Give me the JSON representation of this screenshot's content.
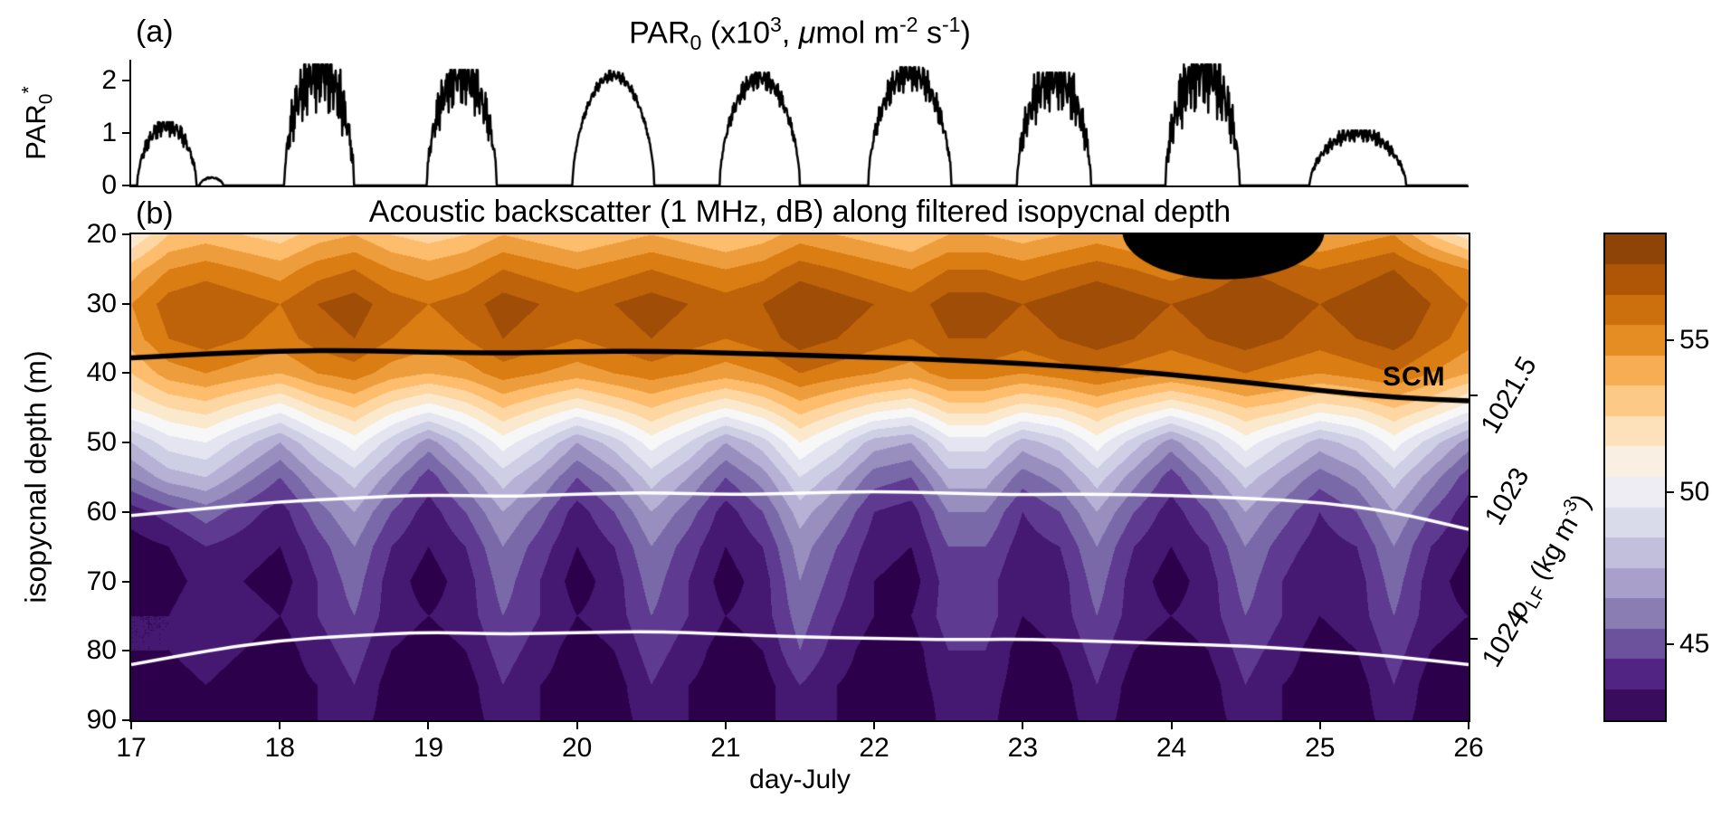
{
  "chart_data": [
    {
      "panel_label": "(a)",
      "type": "line",
      "title_parts": [
        {
          "t": "PAR"
        },
        {
          "t": "0",
          "v": "sub"
        },
        {
          "t": " (x10"
        },
        {
          "t": "3",
          "v": "sup"
        },
        {
          "t": ", "
        },
        {
          "t": "μ",
          "i": true
        },
        {
          "t": "mol m"
        },
        {
          "t": "-2",
          "v": "sup"
        },
        {
          "t": " s"
        },
        {
          "t": "-1",
          "v": "sup"
        },
        {
          "t": ")"
        }
      ],
      "ylabel_parts": [
        {
          "t": "PAR"
        },
        {
          "t": "0",
          "v": "sub"
        },
        {
          "t": "*",
          "v": "sup"
        }
      ],
      "x_range": [
        17,
        26
      ],
      "ylim": [
        0,
        2.4
      ],
      "yticks": [
        0,
        1,
        2
      ],
      "line_color": "#000000",
      "daily_pulses": [
        {
          "start": 17.04,
          "end": 17.44,
          "peak": 1.15,
          "spikiness": 0.5
        },
        {
          "start": 17.46,
          "end": 17.62,
          "peak": 0.15,
          "spikiness": 0.3
        },
        {
          "start": 18.03,
          "end": 18.5,
          "peak": 2.2,
          "spikiness": 1.0
        },
        {
          "start": 18.99,
          "end": 19.46,
          "peak": 2.1,
          "spikiness": 0.8
        },
        {
          "start": 19.97,
          "end": 20.52,
          "peak": 2.1,
          "spikiness": 0.15
        },
        {
          "start": 20.96,
          "end": 21.5,
          "peak": 2.05,
          "spikiness": 0.3
        },
        {
          "start": 21.96,
          "end": 22.52,
          "peak": 2.15,
          "spikiness": 0.45
        },
        {
          "start": 22.96,
          "end": 23.46,
          "peak": 2.05,
          "spikiness": 0.85
        },
        {
          "start": 23.96,
          "end": 24.46,
          "peak": 2.2,
          "spikiness": 1.0
        },
        {
          "start": 24.93,
          "end": 25.58,
          "peak": 1.0,
          "spikiness": 0.45
        }
      ]
    },
    {
      "panel_label": "(b)",
      "type": "heatmap",
      "title": "Acoustic backscatter (1 MHz, dB) along filtered isopycnal depth",
      "xlabel": "day-July",
      "ylabel": "isopycnal depth (m)",
      "xticks": [
        17,
        18,
        19,
        20,
        21,
        22,
        23,
        24,
        25,
        26
      ],
      "yticks": [
        20,
        30,
        40,
        50,
        60,
        70,
        80,
        90
      ],
      "x_range": [
        17,
        26
      ],
      "depth_range": [
        20,
        90
      ],
      "value_range": [
        42.5,
        58.5
      ],
      "contour_step_db": 1,
      "colormap_stops": [
        [
          0.0,
          "#2d004b"
        ],
        [
          0.1,
          "#542788"
        ],
        [
          0.2,
          "#8073ac"
        ],
        [
          0.3,
          "#b2abd2"
        ],
        [
          0.4,
          "#d8daeb"
        ],
        [
          0.5,
          "#f7f7f7"
        ],
        [
          0.6,
          "#fee0b6"
        ],
        [
          0.7,
          "#fdb863"
        ],
        [
          0.8,
          "#e08214"
        ],
        [
          0.9,
          "#b35806"
        ],
        [
          1.0,
          "#7f3b08"
        ]
      ],
      "grid": {
        "x_start": 17,
        "x_step": 0.25,
        "depths": [
          20,
          25,
          30,
          35,
          40,
          45,
          50,
          55,
          60,
          65,
          70,
          75,
          80,
          85,
          90
        ],
        "values_db": [
          [
            51,
            53,
            53.5,
            53,
            52.5,
            53.5,
            54,
            53,
            52.5,
            53,
            54,
            53.5,
            53,
            53.5,
            54,
            53.5,
            53,
            53.5,
            54.5,
            54,
            53.5,
            53,
            54,
            54,
            53.5,
            54,
            54.5,
            54,
            53.5,
            54,
            55,
            54.5,
            54,
            54.5,
            55,
            53,
            51.5
          ],
          [
            53.5,
            55,
            55.5,
            55,
            54.5,
            55.5,
            56,
            55,
            54.5,
            55,
            56,
            55.5,
            55,
            55.5,
            56,
            55.5,
            55,
            55.5,
            56.5,
            56,
            55.5,
            55,
            56,
            56,
            55.5,
            56,
            56.5,
            56,
            55.5,
            56,
            57,
            56.5,
            56,
            56.5,
            57,
            56,
            55
          ],
          [
            55,
            56.5,
            57,
            56.5,
            56,
            57,
            57.5,
            56.5,
            56,
            56.5,
            57.5,
            57,
            56.5,
            57,
            57.5,
            57,
            56.5,
            57,
            58,
            57.5,
            57,
            56.5,
            57.5,
            57.5,
            57,
            57.5,
            58,
            57.5,
            57,
            57.5,
            58,
            57.5,
            57,
            57.5,
            58,
            57,
            56
          ],
          [
            54.5,
            56,
            56.5,
            56,
            55.5,
            56.5,
            57,
            56,
            55.5,
            56,
            57,
            56.5,
            56,
            56.5,
            57,
            56.5,
            56,
            56.5,
            57.5,
            57,
            56.5,
            56,
            57,
            57,
            56.5,
            57,
            57.5,
            57,
            56.5,
            57,
            57.5,
            57,
            56.5,
            57,
            57.5,
            56.5,
            55.5
          ],
          [
            53,
            54.5,
            55,
            54.5,
            54,
            55,
            55.5,
            54.5,
            54,
            54.5,
            55.5,
            55,
            54.5,
            55,
            55.5,
            55,
            54.5,
            55,
            56,
            55.5,
            55,
            54.5,
            55.5,
            55.5,
            55,
            55.5,
            56,
            55.5,
            55,
            55.5,
            56,
            55.5,
            55,
            55.5,
            56,
            55,
            54
          ],
          [
            51,
            52,
            52.5,
            51.5,
            50.5,
            52,
            53,
            51.5,
            50.5,
            51.5,
            53,
            52,
            51,
            52,
            53,
            52,
            51,
            52,
            53.5,
            52.5,
            51.5,
            51,
            52.5,
            52.5,
            51.5,
            52,
            53,
            52,
            51,
            52,
            53,
            52.5,
            51.5,
            52,
            53,
            52,
            50.5
          ],
          [
            48,
            49.5,
            50,
            48.5,
            47,
            49,
            50.5,
            48.5,
            46.5,
            48.5,
            50.5,
            49,
            47,
            48.5,
            50.5,
            49,
            47,
            48.5,
            51,
            49.5,
            47.5,
            47,
            49.5,
            49.5,
            47.5,
            48.5,
            50.5,
            48.5,
            46.5,
            48.5,
            50.5,
            49,
            47.5,
            48.5,
            50.5,
            48.5,
            46.5
          ],
          [
            46,
            47.5,
            48,
            46.5,
            45,
            47,
            48.5,
            46.5,
            44.5,
            46.5,
            48.5,
            47,
            45,
            46.5,
            48.5,
            47,
            45,
            46.5,
            49,
            47.5,
            45.5,
            45,
            47.5,
            47.5,
            45.5,
            46.5,
            48.5,
            46.5,
            44.5,
            46.5,
            48.5,
            47,
            45.5,
            46.5,
            48.5,
            46.5,
            44.5
          ],
          [
            43.5,
            44.5,
            45.5,
            44.5,
            43.5,
            45.5,
            47,
            45,
            43.5,
            45,
            47,
            45.5,
            43.5,
            45,
            47,
            45.5,
            43.5,
            45,
            47.5,
            46,
            44,
            43.5,
            46,
            46,
            44,
            45,
            47,
            45,
            43.5,
            45,
            47,
            45.5,
            44,
            45,
            47,
            45,
            43.5
          ],
          [
            42.5,
            43,
            44,
            43.5,
            43,
            44.5,
            46,
            44,
            43,
            44,
            46,
            44.5,
            43,
            44,
            46,
            44.5,
            43,
            44,
            46.5,
            45,
            43.5,
            43,
            45,
            45,
            43.5,
            44,
            46,
            44,
            43,
            44,
            46,
            44.5,
            43.5,
            44,
            46,
            44,
            43
          ],
          [
            42.5,
            42.5,
            43.5,
            43,
            42.5,
            44,
            45.5,
            43.5,
            42.5,
            43.5,
            45.5,
            44,
            42.5,
            43.5,
            45.5,
            44,
            42.5,
            43.5,
            46,
            44.5,
            43,
            42.5,
            44.5,
            44.5,
            43,
            43.5,
            45.5,
            43.5,
            42.5,
            43.5,
            45.5,
            44,
            43,
            43.5,
            45.5,
            43.5,
            42.5
          ],
          [
            43,
            43,
            44,
            43.5,
            43,
            44,
            45,
            43.5,
            43,
            43.5,
            45,
            44,
            43,
            43.5,
            45,
            44,
            43,
            43.5,
            45.5,
            44,
            43,
            43,
            44.5,
            44.5,
            43,
            43.5,
            45,
            43.5,
            43,
            43.5,
            45,
            44,
            43,
            43.5,
            45,
            43.5,
            43
          ],
          [
            43,
            43,
            43.5,
            43,
            42.5,
            43.5,
            44.5,
            43,
            42.5,
            43,
            44.5,
            43.5,
            42.5,
            43,
            44.5,
            43.5,
            42.5,
            43,
            45,
            43.5,
            42.5,
            42.5,
            44,
            44,
            42.5,
            43,
            44.5,
            43,
            42.5,
            43,
            44.5,
            43.5,
            42.5,
            43,
            44.5,
            43,
            42.5
          ],
          [
            42.5,
            42.5,
            43,
            42.5,
            42.5,
            43,
            44,
            42.5,
            42.5,
            42.5,
            44,
            43,
            42.5,
            42.5,
            44,
            43,
            42.5,
            42.5,
            44,
            43,
            42.5,
            42.5,
            43.5,
            43.5,
            42.5,
            42.5,
            44,
            42.5,
            42.5,
            42.5,
            44,
            43,
            42.5,
            42.5,
            44,
            42.5,
            42.5
          ],
          [
            42.5,
            42.5,
            43,
            42.5,
            42,
            43,
            43.5,
            42.5,
            42,
            42.5,
            43.5,
            43,
            42,
            42.5,
            43.5,
            43,
            42,
            42.5,
            44,
            43,
            42,
            42,
            43.5,
            43.5,
            42,
            42.5,
            43.5,
            42.5,
            42,
            42.5,
            43.5,
            43,
            42,
            42.5,
            43.5,
            42.5,
            42
          ]
        ]
      },
      "scm_label": "SCM",
      "scm_line": {
        "color": "#000000",
        "x_start": 17,
        "x_step": 0.5,
        "depths": [
          37.8,
          37.2,
          36.8,
          36.7,
          37.0,
          37.1,
          36.9,
          36.8,
          37.1,
          37.4,
          37.7,
          38.1,
          38.6,
          39.3,
          40.2,
          41.3,
          42.5,
          43.5,
          44.0
        ]
      },
      "white_contours": [
        {
          "label": "1023",
          "x_start": 17,
          "x_step": 0.5,
          "depths": [
            60.5,
            59.5,
            58.5,
            58.0,
            57.5,
            57.8,
            57.4,
            57.2,
            57.5,
            57.3,
            57.0,
            57.3,
            57.5,
            57.4,
            57.6,
            58.0,
            58.6,
            60.0,
            62.5
          ]
        },
        {
          "label": "1024",
          "x_start": 17,
          "x_step": 0.5,
          "depths": [
            82.0,
            80.0,
            78.5,
            77.8,
            77.3,
            77.6,
            77.4,
            77.2,
            77.6,
            78.0,
            78.2,
            78.4,
            78.3,
            78.6,
            79.0,
            79.3,
            80.0,
            80.8,
            82.0
          ]
        }
      ],
      "right_axis_labels": [
        {
          "text": "1021.5",
          "depth": 43.2
        },
        {
          "text": "1023",
          "depth": 57.8
        },
        {
          "text": "1024",
          "depth": 78.3
        }
      ],
      "mask_blob": {
        "x_day": 24.35,
        "depth": 19.5,
        "rx_days": 0.68,
        "ry_m": 7,
        "color": "#000000"
      },
      "colorbar": {
        "ticks": [
          55,
          50,
          45
        ],
        "label_parts": [
          {
            "t": "ρ",
            "i": true
          },
          {
            "t": "LF",
            "v": "sub"
          },
          {
            "t": " (kg m"
          },
          {
            "t": "-3",
            "v": "sup"
          },
          {
            "t": ")"
          }
        ]
      }
    }
  ]
}
